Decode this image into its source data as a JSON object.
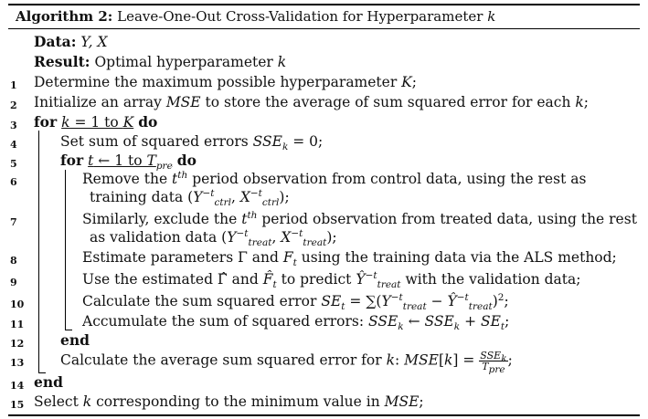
{
  "caption": {
    "label": "Algorithm 2:",
    "title": "Leave-One-Out Cross-Validation for Hyperparameter k"
  },
  "io": {
    "data_label": "Data:",
    "data_value": "Y, X",
    "result_label": "Result:",
    "result_value": "Optimal hyperparameter k"
  },
  "lines": [
    {
      "n": "1",
      "text": "Determine the maximum possible hyperparameter K;"
    },
    {
      "n": "2",
      "text": "Initialize an array MSE to store the average of sum squared error for each k;"
    },
    {
      "n": "3",
      "kw1": "for",
      "text": "k = 1 to K",
      "kw2": "do"
    },
    {
      "n": "4",
      "text": "Set sum of squared errors SSE_k = 0;"
    },
    {
      "n": "5",
      "kw1": "for",
      "text": "t ← 1 to T_pre",
      "kw2": "do"
    },
    {
      "n": "6",
      "text": "Remove the t^th period observation from control data, using the rest as",
      "cont": "training data (Y_ctrl^-t, X_ctrl^-t);"
    },
    {
      "n": "7",
      "text": "Similarly, exclude the t^th period observation from treated data, using the rest",
      "cont": "as validation data (Y_treat^-t, X_treat^-t);"
    },
    {
      "n": "8",
      "text": "Estimate parameters Γ and F_t using the training data via the ALS method;"
    },
    {
      "n": "9",
      "text": "Use the estimated Γ̂ and F̂_t to predict Ŷ_treat^-t with the validation data;"
    },
    {
      "n": "10",
      "text": "Calculate the sum squared error SE_t = ∑(Y_treat^-t − Ŷ_treat^-t)^2;"
    },
    {
      "n": "11",
      "text": "Accumulate the sum of squared errors: SSE_k ← SSE_k + SE_t;"
    },
    {
      "n": "12",
      "kw1": "end"
    },
    {
      "n": "13",
      "text": "Calculate the average sum squared error for k: MSE[k] = SSE_k / T_pre;"
    },
    {
      "n": "14",
      "kw1": "end"
    },
    {
      "n": "15",
      "text": "Select k corresponding to the minimum value in MSE;"
    }
  ]
}
